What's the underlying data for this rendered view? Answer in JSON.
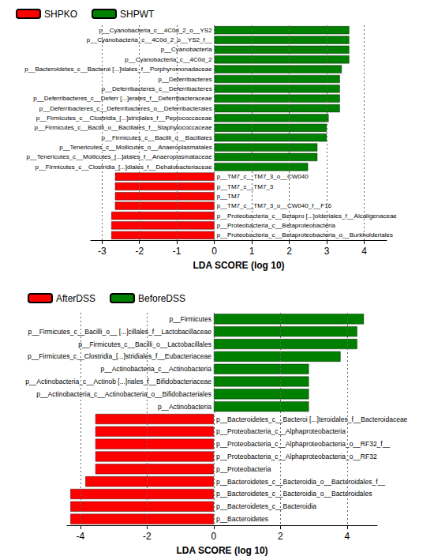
{
  "chart_data": [
    {
      "type": "bar",
      "orientation": "horizontal",
      "x_label": "LDA SCORE (log 10)",
      "categories": [
        "p__Cyanobacteria_c__4C0d_2_o__YS2",
        "p__Cyanobacteria_c__4C0d_2_o__YS2_f__",
        "p__Cyanobacteria",
        "p__Cyanobacteria_c__4C0d_2",
        "p__Bacteroidetes_c__Bacteroi [...]idales_f__Porphyromonadaceae",
        "p__Deferribacteres",
        "p__Deferribacteres_c__Deferribacteres",
        "p__Deferribacteres_c__Deferr [...]erales_f__Deferribacteraceae",
        "p__Deferribacteres_c__Deferribacteres_o__Deferribacterales",
        "p__Firmicutes_c__Clostridia_[...]stridiales_f__Peptococcaceae",
        "p__Firmicutes_c__Bacilli_o__Bacillales_f__Staphylococcaceae",
        "p__Firmicutes_c__Bacilli_o__Bacillales",
        "p__Tenericutes_c__Mollicutes_o__Anaeroplasmatales",
        "p__Tenericutes_c__Mollicutes_[...]atales_f__Anaeroplasmataceae",
        "p__Firmicutes_c__Clostridia_[...]diales_f__Dehalobacteriaceae",
        "p__TM7_c__TM7_3_o__CW040",
        "p__TM7_c__TM7_3",
        "p__TM7",
        "p__TM7_c__TM7_3_o__CW040_f__F16",
        "p__Proteobacteria_c__Betapro [...]olderiales_f__Alcaligenaceae",
        "p__Proteobacteria_c__Betaproteobacteria",
        "p__Proteobacteria_c__Betaproteobacteria_o__Burkholderiales"
      ],
      "series": [
        {
          "name": "SHPKO",
          "color": "#ff0000",
          "values": [
            null,
            null,
            null,
            null,
            null,
            null,
            null,
            null,
            null,
            null,
            null,
            null,
            null,
            null,
            null,
            -2.65,
            -2.65,
            -2.65,
            -2.65,
            -2.75,
            -2.75,
            -2.75
          ]
        },
        {
          "name": "SHPWT",
          "color": "#008000",
          "values": [
            3.6,
            3.6,
            3.6,
            3.6,
            3.4,
            3.35,
            3.35,
            3.35,
            3.35,
            3.05,
            3.0,
            3.0,
            2.75,
            2.75,
            2.5,
            null,
            null,
            null,
            null,
            null,
            null,
            null
          ]
        }
      ],
      "xlim": [
        -3.3,
        4.6
      ],
      "xticks": [
        -3,
        -2,
        -1,
        0,
        1,
        2,
        3,
        4
      ],
      "grid": true,
      "legend": "top left",
      "tick_labels": "x",
      "data_labels": false
    },
    {
      "type": "bar",
      "orientation": "horizontal",
      "x_label": "LDA SCORE (log 10)",
      "categories": [
        "p__Firmicutes",
        "p__Firmicutes_c__Bacilli_o__ [...]cillales_f__Lactobacillaceae",
        "p__Firmicutes_c__Bacilli_o__Lactobacillales",
        "p__Firmicutes_c__Clostridia_[...]stridiales_f__Eubacteriaceae",
        "p__Actinobacteria_c__Actinobacteria",
        "p__Actinobacteria_c__Actinob [...]riales_f__Bifidobacteriaceae",
        "p__Actinobacteria_c__Actinobacteria_o__Bifidobacteriales",
        "p__Actinobacteria",
        "p__Bacteroidetes_c__Bacteroi [...]teroidales_f__Bacteroidaceae",
        "p__Proteobacteria_c__Alphaproteobacteria",
        "p__Proteobacteria_c__Alphaproteobacteria_o__RF32_f__",
        "p__Proteobacteria_c__Alphaproteobacteria_o__RF32",
        "p__Proteobacteria",
        "p__Bacteroidetes_c__Bacteroidia_o__Bacteroidales_f__",
        "p__Bacteroidetes_c__Bacteroidia_o__Bacteroidales",
        "p__Bacteroidetes_c__Bacteroidia",
        "p__Bacteroidetes"
      ],
      "series": [
        {
          "name": "AfterDSS",
          "color": "#ff0000",
          "values": [
            null,
            null,
            null,
            null,
            null,
            null,
            null,
            null,
            -3.55,
            -3.55,
            -3.55,
            -3.55,
            -3.55,
            -3.85,
            -4.3,
            -4.3,
            -4.3
          ]
        },
        {
          "name": "BeforeDSS",
          "color": "#008000",
          "values": [
            4.5,
            4.3,
            4.3,
            3.8,
            2.85,
            2.85,
            2.85,
            2.85,
            null,
            null,
            null,
            null,
            null,
            null,
            null,
            null,
            null
          ]
        }
      ],
      "xlim": [
        -4.4,
        4.9
      ],
      "xticks": [
        -4,
        -2,
        0,
        2,
        4
      ],
      "grid": true,
      "legend": "top left",
      "tick_labels": "x",
      "data_labels": false
    }
  ]
}
